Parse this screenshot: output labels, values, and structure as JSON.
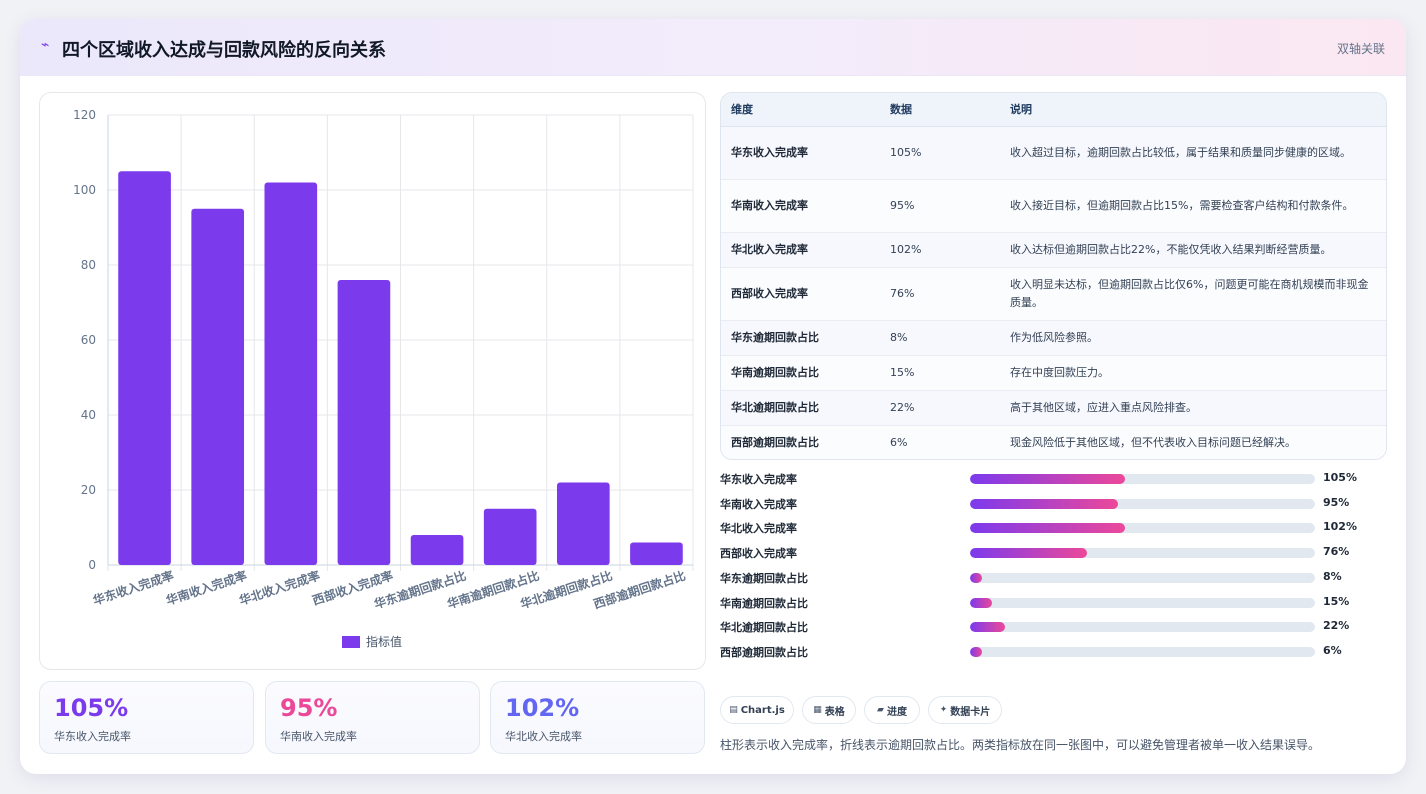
{
  "header": {
    "title": "四个区域收入达成与回款风险的反向关系",
    "badge": "双轴关联"
  },
  "chart_data": {
    "type": "bar",
    "categories": [
      "华东收入完成率",
      "华南收入完成率",
      "华北收入完成率",
      "西部收入完成率",
      "华东逾期回款占比",
      "华南逾期回款占比",
      "华北逾期回款占比",
      "西部逾期回款占比"
    ],
    "series": [
      {
        "name": "指标值",
        "values": [
          105,
          95,
          102,
          76,
          8,
          15,
          22,
          6
        ]
      }
    ],
    "ylim": [
      0,
      120
    ],
    "yticks": [
      0,
      20,
      40,
      60,
      80,
      100,
      120
    ],
    "grid": true,
    "legend": "bottom",
    "bar_color": "#7c3aed"
  },
  "kpis": [
    {
      "value": "105%",
      "label": "华东收入完成率",
      "color": "#7c3aed"
    },
    {
      "value": "95%",
      "label": "华南收入完成率",
      "color": "#ec4899"
    },
    {
      "value": "102%",
      "label": "华北收入完成率",
      "color": "#6366f1"
    }
  ],
  "table": {
    "headers": [
      "维度",
      "数据",
      "说明"
    ],
    "rows": [
      {
        "dim": "华东收入完成率",
        "val": "105%",
        "desc": "收入超过目标，逾期回款占比较低，属于结果和质量同步健康的区域。"
      },
      {
        "dim": "华南收入完成率",
        "val": "95%",
        "desc": "收入接近目标，但逾期回款占比15%，需要检查客户结构和付款条件。"
      },
      {
        "dim": "华北收入完成率",
        "val": "102%",
        "desc": "收入达标但逾期回款占比22%，不能仅凭收入结果判断经营质量。"
      },
      {
        "dim": "西部收入完成率",
        "val": "76%",
        "desc": "收入明显未达标，但逾期回款占比仅6%，问题更可能在商机规模而非现金质量。"
      },
      {
        "dim": "华东逾期回款占比",
        "val": "8%",
        "desc": "作为低风险参照。"
      },
      {
        "dim": "华南逾期回款占比",
        "val": "15%",
        "desc": "存在中度回款压力。"
      },
      {
        "dim": "华北逾期回款占比",
        "val": "22%",
        "desc": "高于其他区域，应进入重点风险排查。"
      },
      {
        "dim": "西部逾期回款占比",
        "val": "6%",
        "desc": "现金风险低于其他区域，但不代表收入目标问题已经解决。"
      }
    ]
  },
  "progress": [
    {
      "label": "华东收入完成率",
      "value": "105%",
      "percent": 45
    },
    {
      "label": "华南收入完成率",
      "value": "95%",
      "percent": 43
    },
    {
      "label": "华北收入完成率",
      "value": "102%",
      "percent": 45
    },
    {
      "label": "西部收入完成率",
      "value": "76%",
      "percent": 34
    },
    {
      "label": "华东逾期回款占比",
      "value": "8%",
      "percent": 3.5
    },
    {
      "label": "华南逾期回款占比",
      "value": "15%",
      "percent": 6.5
    },
    {
      "label": "华北逾期回款占比",
      "value": "22%",
      "percent": 10
    },
    {
      "label": "西部逾期回款占比",
      "value": "6%",
      "percent": 3.5
    }
  ],
  "tags": [
    {
      "icon": "▤",
      "label": "Chart.js"
    },
    {
      "icon": "▦",
      "label": "表格"
    },
    {
      "icon": "▰",
      "label": "进度"
    },
    {
      "icon": "✦",
      "label": "数据卡片"
    }
  ],
  "note": "柱形表示收入完成率，折线表示逾期回款占比。两类指标放在同一张图中，可以避免管理者被单一收入结果误导。"
}
